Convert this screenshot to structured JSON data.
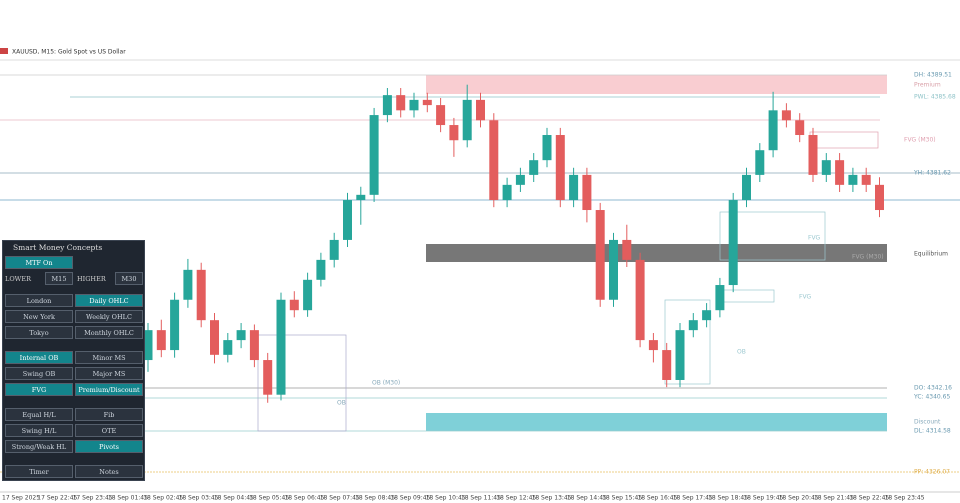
{
  "header": {
    "title": "XAUUSD, M15:  Gold Spot vs US Dollar"
  },
  "chart_data": {
    "type": "candlestick",
    "ylim": [
      4309.5,
      4392.7
    ],
    "bull_color": "#26a69a",
    "bear_color": "#e35d5d",
    "candles": [
      [
        4329.5,
        4337.3,
        4327.0,
        4335.8
      ],
      [
        4335.8,
        4338.0,
        4330.1,
        4331.6
      ],
      [
        4331.6,
        4343.7,
        4330.0,
        4342.2
      ],
      [
        4342.2,
        4350.8,
        4340.5,
        4348.5
      ],
      [
        4348.5,
        4350.0,
        4336.4,
        4337.9
      ],
      [
        4337.9,
        4339.4,
        4328.8,
        4330.6
      ],
      [
        4330.6,
        4335.2,
        4329.0,
        4333.7
      ],
      [
        4333.7,
        4337.3,
        4332.0,
        4335.8
      ],
      [
        4335.8,
        4337.0,
        4328.0,
        4329.5
      ],
      [
        4329.5,
        4331.0,
        4320.5,
        4322.2
      ],
      [
        4322.2,
        4343.7,
        4321.0,
        4342.2
      ],
      [
        4342.2,
        4344.0,
        4338.5,
        4340.0
      ],
      [
        4340.0,
        4347.9,
        4338.6,
        4346.4
      ],
      [
        4346.4,
        4352.1,
        4345.0,
        4350.6
      ],
      [
        4350.6,
        4356.3,
        4349.0,
        4354.8
      ],
      [
        4354.8,
        4364.7,
        4353.3,
        4363.2
      ],
      [
        4363.2,
        4366.0,
        4358.0,
        4364.3
      ],
      [
        4364.3,
        4382.6,
        4362.8,
        4381.1
      ],
      [
        4381.1,
        4386.8,
        4379.6,
        4385.3
      ],
      [
        4385.3,
        4386.8,
        4380.6,
        4382.1
      ],
      [
        4382.1,
        4385.8,
        4380.6,
        4384.3
      ],
      [
        4384.3,
        4385.8,
        4381.7,
        4383.2
      ],
      [
        4383.2,
        4384.7,
        4377.5,
        4379.0
      ],
      [
        4379.0,
        4380.5,
        4372.3,
        4375.8
      ],
      [
        4375.8,
        4387.5,
        4374.3,
        4384.3
      ],
      [
        4384.3,
        4385.8,
        4378.5,
        4380.0
      ],
      [
        4380.0,
        4381.5,
        4361.7,
        4363.2
      ],
      [
        4363.2,
        4367.9,
        4361.7,
        4366.4
      ],
      [
        4366.4,
        4370.0,
        4364.9,
        4368.5
      ],
      [
        4368.5,
        4373.1,
        4367.0,
        4371.6
      ],
      [
        4371.6,
        4378.4,
        4370.1,
        4376.9
      ],
      [
        4376.9,
        4378.4,
        4361.7,
        4363.2
      ],
      [
        4363.2,
        4370.0,
        4361.7,
        4368.5
      ],
      [
        4368.5,
        4370.0,
        4358.5,
        4361.1
      ],
      [
        4361.1,
        4362.6,
        4340.7,
        4342.2
      ],
      [
        4342.2,
        4356.3,
        4340.7,
        4354.8
      ],
      [
        4354.8,
        4358.0,
        4349.1,
        4350.6
      ],
      [
        4350.6,
        4352.1,
        4332.2,
        4333.7
      ],
      [
        4333.7,
        4335.2,
        4329.0,
        4331.6
      ],
      [
        4331.6,
        4333.1,
        4323.8,
        4325.3
      ],
      [
        4325.3,
        4337.3,
        4323.8,
        4335.8
      ],
      [
        4335.8,
        4339.4,
        4334.3,
        4337.9
      ],
      [
        4337.9,
        4341.5,
        4336.4,
        4340.0
      ],
      [
        4340.0,
        4346.8,
        4338.5,
        4345.3
      ],
      [
        4345.3,
        4364.7,
        4343.8,
        4363.2
      ],
      [
        4363.2,
        4370.0,
        4361.7,
        4368.5
      ],
      [
        4368.5,
        4375.2,
        4367.0,
        4373.7
      ],
      [
        4373.7,
        4386.0,
        4372.2,
        4382.1
      ],
      [
        4382.1,
        4383.6,
        4378.5,
        4380.0
      ],
      [
        4380.0,
        4381.5,
        4375.4,
        4376.9
      ],
      [
        4376.9,
        4378.4,
        4367.0,
        4368.5
      ],
      [
        4368.5,
        4373.1,
        4367.0,
        4371.6
      ],
      [
        4371.6,
        4373.1,
        4364.9,
        4366.4
      ],
      [
        4366.4,
        4370.0,
        4364.9,
        4368.5
      ],
      [
        4368.5,
        4370.0,
        4364.9,
        4366.4
      ],
      [
        4366.4,
        4368.0,
        4359.6,
        4361.1
      ]
    ],
    "x_labels": [
      "17 Sep 2025",
      "17 Sep 22:45",
      "17 Sep 23:45",
      "18 Sep 01:45",
      "18 Sep 02:45",
      "18 Sep 03:45",
      "18 Sep 04:45",
      "18 Sep 05:45",
      "18 Sep 06:45",
      "18 Sep 07:45",
      "18 Sep 08:45",
      "18 Sep 09:45",
      "18 Sep 10:45",
      "18 Sep 11:45",
      "18 Sep 12:45",
      "18 Sep 13:45",
      "18 Sep 14:45",
      "18 Sep 15:45",
      "18 Sep 16:45",
      "18 Sep 17:45",
      "18 Sep 18:45",
      "18 Sep 19:45",
      "18 Sep 20:45",
      "18 Sep 21:45",
      "18 Sep 22:45",
      "18 Sep 23:45"
    ],
    "levels": {
      "dh": "DH: 4389.51",
      "premium": "Premium",
      "pwl": "PWL: 4385.68",
      "fvg_m30_top": "FVG (M30)",
      "yh": "YH: 4381.62",
      "fvg1": "FVG",
      "fvg_m30": "FVG (M30)",
      "equilibrium": "Equilibrium",
      "fvg2": "FVG",
      "ob_right": "OB",
      "ob_m30": "OB (M30)",
      "ob_left": "OB",
      "do": "DO: 4342.16",
      "yc": "YC: 4340.65",
      "discount": "Discount",
      "dl": "DL: 4314.58",
      "pp": "PP: 4326.07"
    }
  },
  "panel": {
    "title": "Smart Money Concepts",
    "mtf": "MTF On",
    "lower": "LOWER",
    "lower_tf": "M15",
    "higher": "HIGHER",
    "higher_tf": "M30",
    "groups": [
      [
        [
          {
            "label": "London",
            "active": false
          },
          {
            "label": "Daily OHLC",
            "active": true
          }
        ],
        [
          {
            "label": "New York",
            "active": false
          },
          {
            "label": "Weekly OHLC",
            "active": false
          }
        ],
        [
          {
            "label": "Tokyo",
            "active": false
          },
          {
            "label": "Monthly OHLC",
            "active": false
          }
        ]
      ],
      [
        [
          {
            "label": "Internal OB",
            "active": true
          },
          {
            "label": "Minor MS",
            "active": false
          }
        ],
        [
          {
            "label": "Swing OB",
            "active": false
          },
          {
            "label": "Major MS",
            "active": false
          }
        ],
        [
          {
            "label": "FVG",
            "active": true
          },
          {
            "label": "Premium/Discount",
            "active": true
          }
        ]
      ],
      [
        [
          {
            "label": "Equal H/L",
            "active": false
          },
          {
            "label": "Fib",
            "active": false
          }
        ],
        [
          {
            "label": "Swing H/L",
            "active": false
          },
          {
            "label": "OTE",
            "active": false
          }
        ],
        [
          {
            "label": "Strong/Weak HL",
            "active": false
          },
          {
            "label": "Pivots",
            "active": true
          }
        ]
      ],
      [
        [
          {
            "label": "Timer",
            "active": false
          },
          {
            "label": "Notes",
            "active": false
          }
        ]
      ]
    ]
  }
}
